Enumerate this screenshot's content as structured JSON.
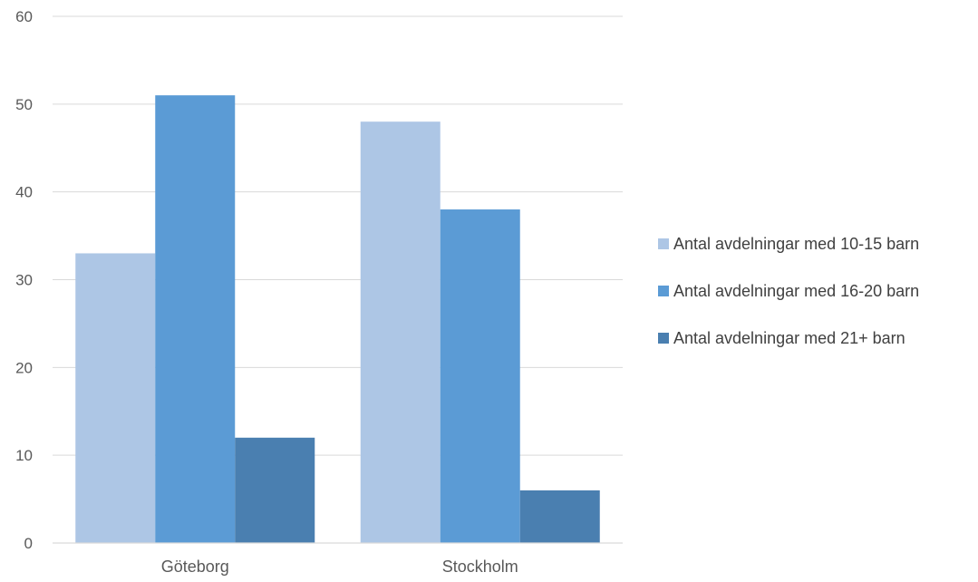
{
  "chart_data": {
    "type": "bar",
    "categories": [
      "Göteborg",
      "Stockholm"
    ],
    "series": [
      {
        "name": "Antal avdelningar med 10-15 barn",
        "values": [
          33,
          48
        ],
        "color": "#adc6e5"
      },
      {
        "name": "Antal avdelningar med 16-20 barn",
        "values": [
          51,
          38
        ],
        "color": "#5b9bd5"
      },
      {
        "name": "Antal avdelningar med 21+ barn",
        "values": [
          12,
          6
        ],
        "color": "#4a7fb0"
      }
    ],
    "title": "",
    "xlabel": "",
    "ylabel": "",
    "ylim": [
      0,
      60
    ],
    "yticks": [
      "0",
      "10",
      "20",
      "30",
      "40",
      "50",
      "60"
    ],
    "grid": true,
    "legend_position": "right"
  }
}
